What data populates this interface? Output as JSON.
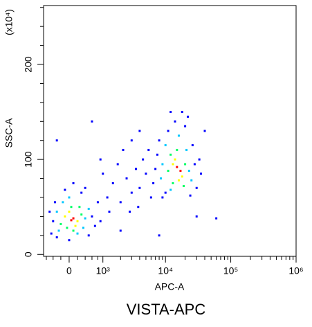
{
  "chart_data": {
    "type": "scatter",
    "title": "VISTA-APC",
    "xlabel": "APC-A",
    "ylabel": "SSC-A",
    "yunit": "(x10⁴)",
    "xscale": "biexponential",
    "xlim": [
      -690,
      1000000
    ],
    "ylim": [
      -2,
      262
    ],
    "xticks": [
      0,
      {
        "value": 1000,
        "label": "10³"
      },
      {
        "value": 10000,
        "label": "10⁴"
      },
      {
        "value": 100000,
        "label": "10⁵"
      },
      {
        "value": 1000000,
        "label": "10⁶"
      }
    ],
    "xminorticks": [
      -600,
      -400,
      -200,
      200,
      400,
      600,
      800,
      2000,
      3000,
      4000,
      5000,
      6000,
      7000,
      8000,
      9000,
      20000,
      30000,
      40000,
      50000,
      60000,
      70000,
      80000,
      90000,
      200000,
      300000,
      400000,
      500000,
      600000,
      700000,
      800000,
      900000
    ],
    "yticks": [
      0,
      100,
      200
    ],
    "yminorticks": [
      20,
      40,
      60,
      80,
      120,
      140,
      160,
      180,
      220,
      240,
      260
    ],
    "x": [
      100,
      50,
      -100,
      200,
      0,
      150,
      -200,
      300,
      50,
      -50,
      250,
      100,
      -300,
      400,
      -150,
      350,
      0,
      200,
      -250,
      500,
      -400,
      600,
      -350,
      700,
      -100,
      300,
      -450,
      500,
      100,
      800,
      -300,
      900,
      -500,
      0,
      400,
      15000,
      17000,
      13000,
      18000,
      14000,
      16000,
      11000,
      20000,
      12000,
      19000,
      15000,
      13000,
      9000,
      23000,
      10000,
      21000,
      12000,
      25000,
      16000,
      8500,
      7000,
      28000,
      8000,
      26000,
      10000,
      30000,
      14000,
      20000,
      6500,
      33000,
      11000,
      18000,
      9000,
      24000,
      7500,
      35000,
      22000,
      12000,
      1200,
      1500,
      2000,
      2500,
      3000,
      3500,
      4000,
      4500,
      5000,
      1800,
      2200,
      3000,
      1000,
      2800,
      3800,
      1300,
      5500,
      6000,
      900,
      4000,
      600,
      -300,
      30000,
      60000,
      8000,
      2000,
      40000
    ],
    "y": [
      38,
      36,
      40,
      35,
      45,
      30,
      32,
      42,
      50,
      28,
      50,
      25,
      45,
      38,
      55,
      28,
      60,
      22,
      25,
      48,
      35,
      40,
      55,
      30,
      68,
      65,
      22,
      20,
      75,
      55,
      18,
      35,
      45,
      15,
      70,
      92,
      88,
      95,
      82,
      100,
      78,
      88,
      95,
      105,
      72,
      110,
      75,
      95,
      88,
      115,
      110,
      68,
      78,
      125,
      80,
      90,
      95,
      120,
      115,
      65,
      70,
      140,
      135,
      75,
      100,
      130,
      150,
      60,
      62,
      105,
      85,
      145,
      150,
      60,
      75,
      55,
      80,
      65,
      90,
      70,
      100,
      85,
      95,
      110,
      120,
      85,
      45,
      50,
      45,
      110,
      60,
      100,
      130,
      140,
      120,
      40,
      38,
      20,
      25,
      130
    ],
    "colors": [
      "#ff0000",
      "#ff0000",
      "#ffff00",
      "#ffff00",
      "#ffff00",
      "#ffff00",
      "#00ff64",
      "#00ff64",
      "#00ff64",
      "#00ff64",
      "#00ff64",
      "#00ff64",
      "#00c8ff",
      "#00c8ff",
      "#00c8ff",
      "#00c8ff",
      "#00c8ff",
      "#00c8ff",
      "#00c8ff",
      "#00c8ff",
      "#0000ff",
      "#0000ff",
      "#0000ff",
      "#0000ff",
      "#0000ff",
      "#0000ff",
      "#0000ff",
      "#0000ff",
      "#0000ff",
      "#0000ff",
      "#0000ff",
      "#0000ff",
      "#0000ff",
      "#0000ff",
      "#0000ff",
      "#ff0000",
      "#ff0000",
      "#ffff00",
      "#ffff00",
      "#ffff00",
      "#ffff00",
      "#00ff64",
      "#00ff64",
      "#00ff64",
      "#00ff64",
      "#00ff64",
      "#00ff64",
      "#00c8ff",
      "#00c8ff",
      "#00c8ff",
      "#00c8ff",
      "#00c8ff",
      "#00c8ff",
      "#00c8ff",
      "#00c8ff",
      "#0000ff",
      "#0000ff",
      "#0000ff",
      "#0000ff",
      "#0000ff",
      "#0000ff",
      "#0000ff",
      "#0000ff",
      "#0000ff",
      "#0000ff",
      "#0000ff",
      "#0000ff",
      "#0000ff",
      "#0000ff",
      "#0000ff",
      "#0000ff",
      "#0000ff",
      "#0000ff",
      "#0000ff",
      "#0000ff",
      "#0000ff",
      "#0000ff",
      "#0000ff",
      "#0000ff",
      "#0000ff",
      "#0000ff",
      "#0000ff",
      "#0000ff",
      "#0000ff",
      "#0000ff",
      "#0000ff",
      "#0000ff",
      "#0000ff",
      "#0000ff",
      "#0000ff",
      "#0000ff",
      "#0000ff",
      "#0000ff",
      "#0000ff",
      "#0000ff",
      "#0000ff",
      "#0000ff",
      "#0000ff",
      "#0000ff",
      "#0000ff"
    ]
  }
}
